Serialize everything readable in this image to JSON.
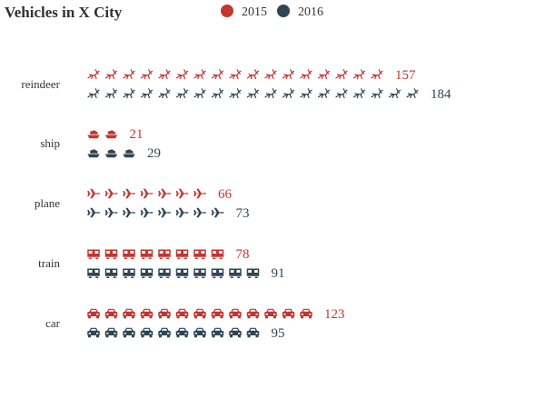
{
  "chart_data": {
    "type": "bar",
    "subtype": "pictorial",
    "title": "Vehicles in X City",
    "categories": [
      "reindeer",
      "ship",
      "plane",
      "train",
      "car"
    ],
    "series": [
      {
        "name": "2015",
        "color": "#c23531",
        "values": [
          157,
          21,
          66,
          78,
          123
        ]
      },
      {
        "name": "2016",
        "color": "#2f4554",
        "values": [
          184,
          29,
          73,
          91,
          95
        ]
      }
    ],
    "icons": {
      "reindeer": "reindeer-icon",
      "ship": "ship-icon",
      "plane": "plane-icon",
      "train": "train-icon",
      "car": "car-icon"
    },
    "units_per_icon": 9.5,
    "legend_position": "top-center",
    "grid": false,
    "xlabel": "",
    "ylabel": ""
  }
}
